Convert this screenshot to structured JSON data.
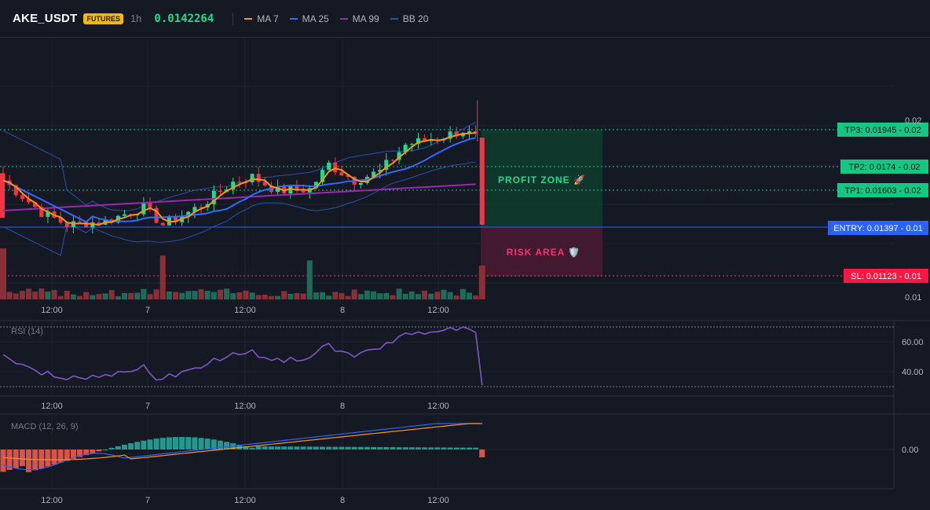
{
  "header": {
    "symbol": "AKE_USDT",
    "badge": "FUTURES",
    "interval": "1h",
    "price": "0.0142264",
    "legend": [
      {
        "name": "MA 7",
        "color": "#f7931a"
      },
      {
        "name": "MA 25",
        "color": "#2f6bff"
      },
      {
        "name": "MA 99",
        "color": "#9c27b0"
      },
      {
        "name": "BB 20",
        "color": "#2a4fa8"
      }
    ]
  },
  "levels": [
    {
      "label": "TP3: 0.01945",
      "value": "0.02",
      "color": "#16c784",
      "kind": "tp",
      "price": 0.01945
    },
    {
      "label": "TP2: 0.0174",
      "value": "0.02",
      "color": "#16c784",
      "kind": "tp",
      "price": 0.0174
    },
    {
      "label": "TP1: 0.01603",
      "value": "0.02",
      "color": "#16c784",
      "kind": "tp",
      "price": 0.01603
    },
    {
      "label": "ENTRY: 0.01397",
      "value": "0.01",
      "color": "#2962ff",
      "kind": "entry",
      "price": 0.01397
    },
    {
      "label": "SL: 0.01123",
      "value": "0.01",
      "color": "#ff1744",
      "kind": "sl",
      "price": 0.01123
    }
  ],
  "zones": {
    "profit": "PROFIT ZONE 🚀",
    "risk": "RISK AREA 🛡️"
  },
  "price_axis": [
    "0.02",
    "0.01"
  ],
  "time_axis": [
    "12:00",
    "7",
    "12:00",
    "8",
    "12:00"
  ],
  "rsi": {
    "label": "RSI (14)",
    "ticks": [
      "60.00",
      "40.00"
    ]
  },
  "macd": {
    "label": "MACD (12, 26, 9)",
    "ticks": [
      "0.00"
    ]
  },
  "colors": {
    "up": "#26d98a",
    "down": "#f23645",
    "background": "#151924"
  }
}
